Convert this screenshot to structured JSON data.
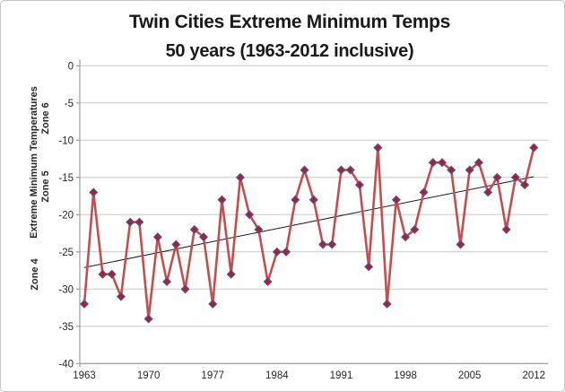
{
  "chart_data": {
    "type": "line",
    "title": "Twin Cities Extreme Minimum Temps",
    "subtitle": "50 years (1963-2012 inclusive)",
    "ylabel": "Extreme Minimum Temperatures",
    "zone_labels": [
      "Zone 6",
      "Zone 5",
      "Zone 4"
    ],
    "xlabel": "",
    "years": [
      1963,
      1964,
      1965,
      1966,
      1967,
      1968,
      1969,
      1970,
      1971,
      1972,
      1973,
      1974,
      1975,
      1976,
      1977,
      1978,
      1979,
      1980,
      1981,
      1982,
      1983,
      1984,
      1985,
      1986,
      1987,
      1988,
      1989,
      1990,
      1991,
      1992,
      1993,
      1994,
      1995,
      1996,
      1997,
      1998,
      1999,
      2000,
      2001,
      2002,
      2003,
      2004,
      2005,
      2006,
      2007,
      2008,
      2009,
      2010,
      2011,
      2012
    ],
    "values": [
      -32,
      -17,
      -28,
      -28,
      -31,
      -21,
      -21,
      -34,
      -23,
      -29,
      -24,
      -30,
      -22,
      -23,
      -32,
      -18,
      -28,
      -15,
      -20,
      -22,
      -29,
      -25,
      -25,
      -18,
      -14,
      -18,
      -24,
      -24,
      -14,
      -14,
      -16,
      -27,
      -11,
      -32,
      -18,
      -23,
      -22,
      -17,
      -13,
      -13,
      -14,
      -24,
      -14,
      -13,
      -17,
      -15,
      -22,
      -15,
      -16,
      -11
    ],
    "yticks": [
      0,
      -5,
      -10,
      -15,
      -20,
      -25,
      -30,
      -35,
      -40
    ],
    "xticks": [
      1963,
      1970,
      1977,
      1984,
      1991,
      1998,
      2005,
      2012
    ],
    "ylim": [
      -40,
      0
    ],
    "xlim": [
      1963,
      2012
    ],
    "grid": true,
    "legend": "none",
    "trendline": {
      "start_year": 1963,
      "start_value": -27.1,
      "end_year": 2012,
      "end_value": -14.9
    },
    "colors": {
      "line": "#c0504d",
      "marker_fill": "#b01e28",
      "marker_edge": "#50518e",
      "trend": "#1a1a1a",
      "grid": "#c9c9c9",
      "axis": "#9b9b9b",
      "tick_text": "#262626",
      "title_text": "#1a1a1a"
    }
  }
}
